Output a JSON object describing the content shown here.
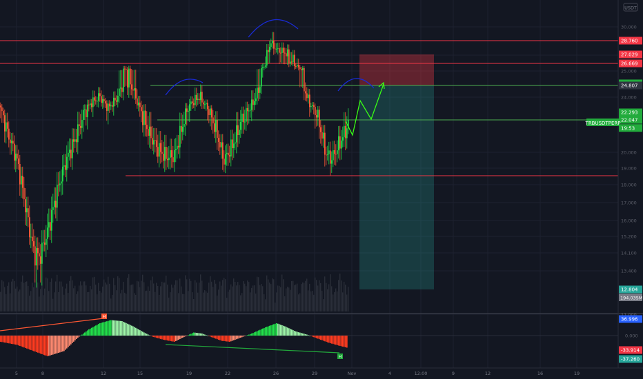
{
  "chart_data": {
    "type": "candlestick",
    "symbol": "TRBUSDTPERP",
    "currency_label": "USDT",
    "currency_suffix": "USDT",
    "x_tick_labels": [
      "5",
      "8",
      "12",
      "15",
      "19",
      "22",
      "26",
      "29",
      "Nov",
      "4",
      "12:00",
      "9",
      "12",
      "16",
      "19"
    ],
    "y_ticks": [
      11.0,
      13.4,
      14.1,
      15.2,
      16.0,
      17.0,
      18.0,
      19.0,
      20.0,
      22.0,
      24.0,
      25.0,
      27.0,
      29.0,
      30.0
    ],
    "ylim": [
      11.6,
      30.8
    ],
    "horizontal_levels": [
      {
        "value": 28.76,
        "color": "#f23645",
        "label": "28.760"
      },
      {
        "value": 26.669,
        "color": "#f23645",
        "label": "26.669"
      },
      {
        "value": 24.807,
        "color": "#4caf50",
        "label": "24.807"
      },
      {
        "value": 22.047,
        "color": "#4caf50",
        "label": "22.047"
      },
      {
        "value": 18.508,
        "color": "#f23645",
        "label": "18.508"
      }
    ],
    "price_badges": [
      {
        "value": 28.76,
        "text": "28.760",
        "color": "#f23645"
      },
      {
        "value": 27.029,
        "text": "27.029",
        "color": "#f23645"
      },
      {
        "value": 26.669,
        "text": "26.669",
        "color": "#f23645"
      },
      {
        "value": 24.835,
        "text": "24.835",
        "color": "#22ab3c"
      },
      {
        "value": 24.807,
        "text": "24.807",
        "color": "#2f3540"
      },
      {
        "value": 22.293,
        "text": "22.293",
        "color": "#22ab3c"
      },
      {
        "value": 22.047,
        "text": "22.047",
        "color": "#22ab3c"
      },
      {
        "value": 21.5,
        "text": "19:53",
        "color": "#22ab3c"
      },
      {
        "value": 12.804,
        "text": "12.804",
        "color": "#26a69a"
      }
    ],
    "current_price": 22.047,
    "countdown": "19:53",
    "volume_label": "194.035M",
    "position_box": {
      "entry": 24.807,
      "stop": 27.029,
      "target": 12.804
    },
    "oscillator": {
      "ticks": [
        0.0
      ],
      "badges": [
        {
          "text": "36.996",
          "color": "#2962ff"
        },
        {
          "text": "-33.914",
          "color": "#f23645"
        },
        {
          "text": "-37.260",
          "color": "#26a69a"
        }
      ],
      "markers": [
        {
          "text": "H",
          "color": "#ff5733"
        },
        {
          "text": "H",
          "color": "#22ab3c"
        }
      ]
    }
  }
}
